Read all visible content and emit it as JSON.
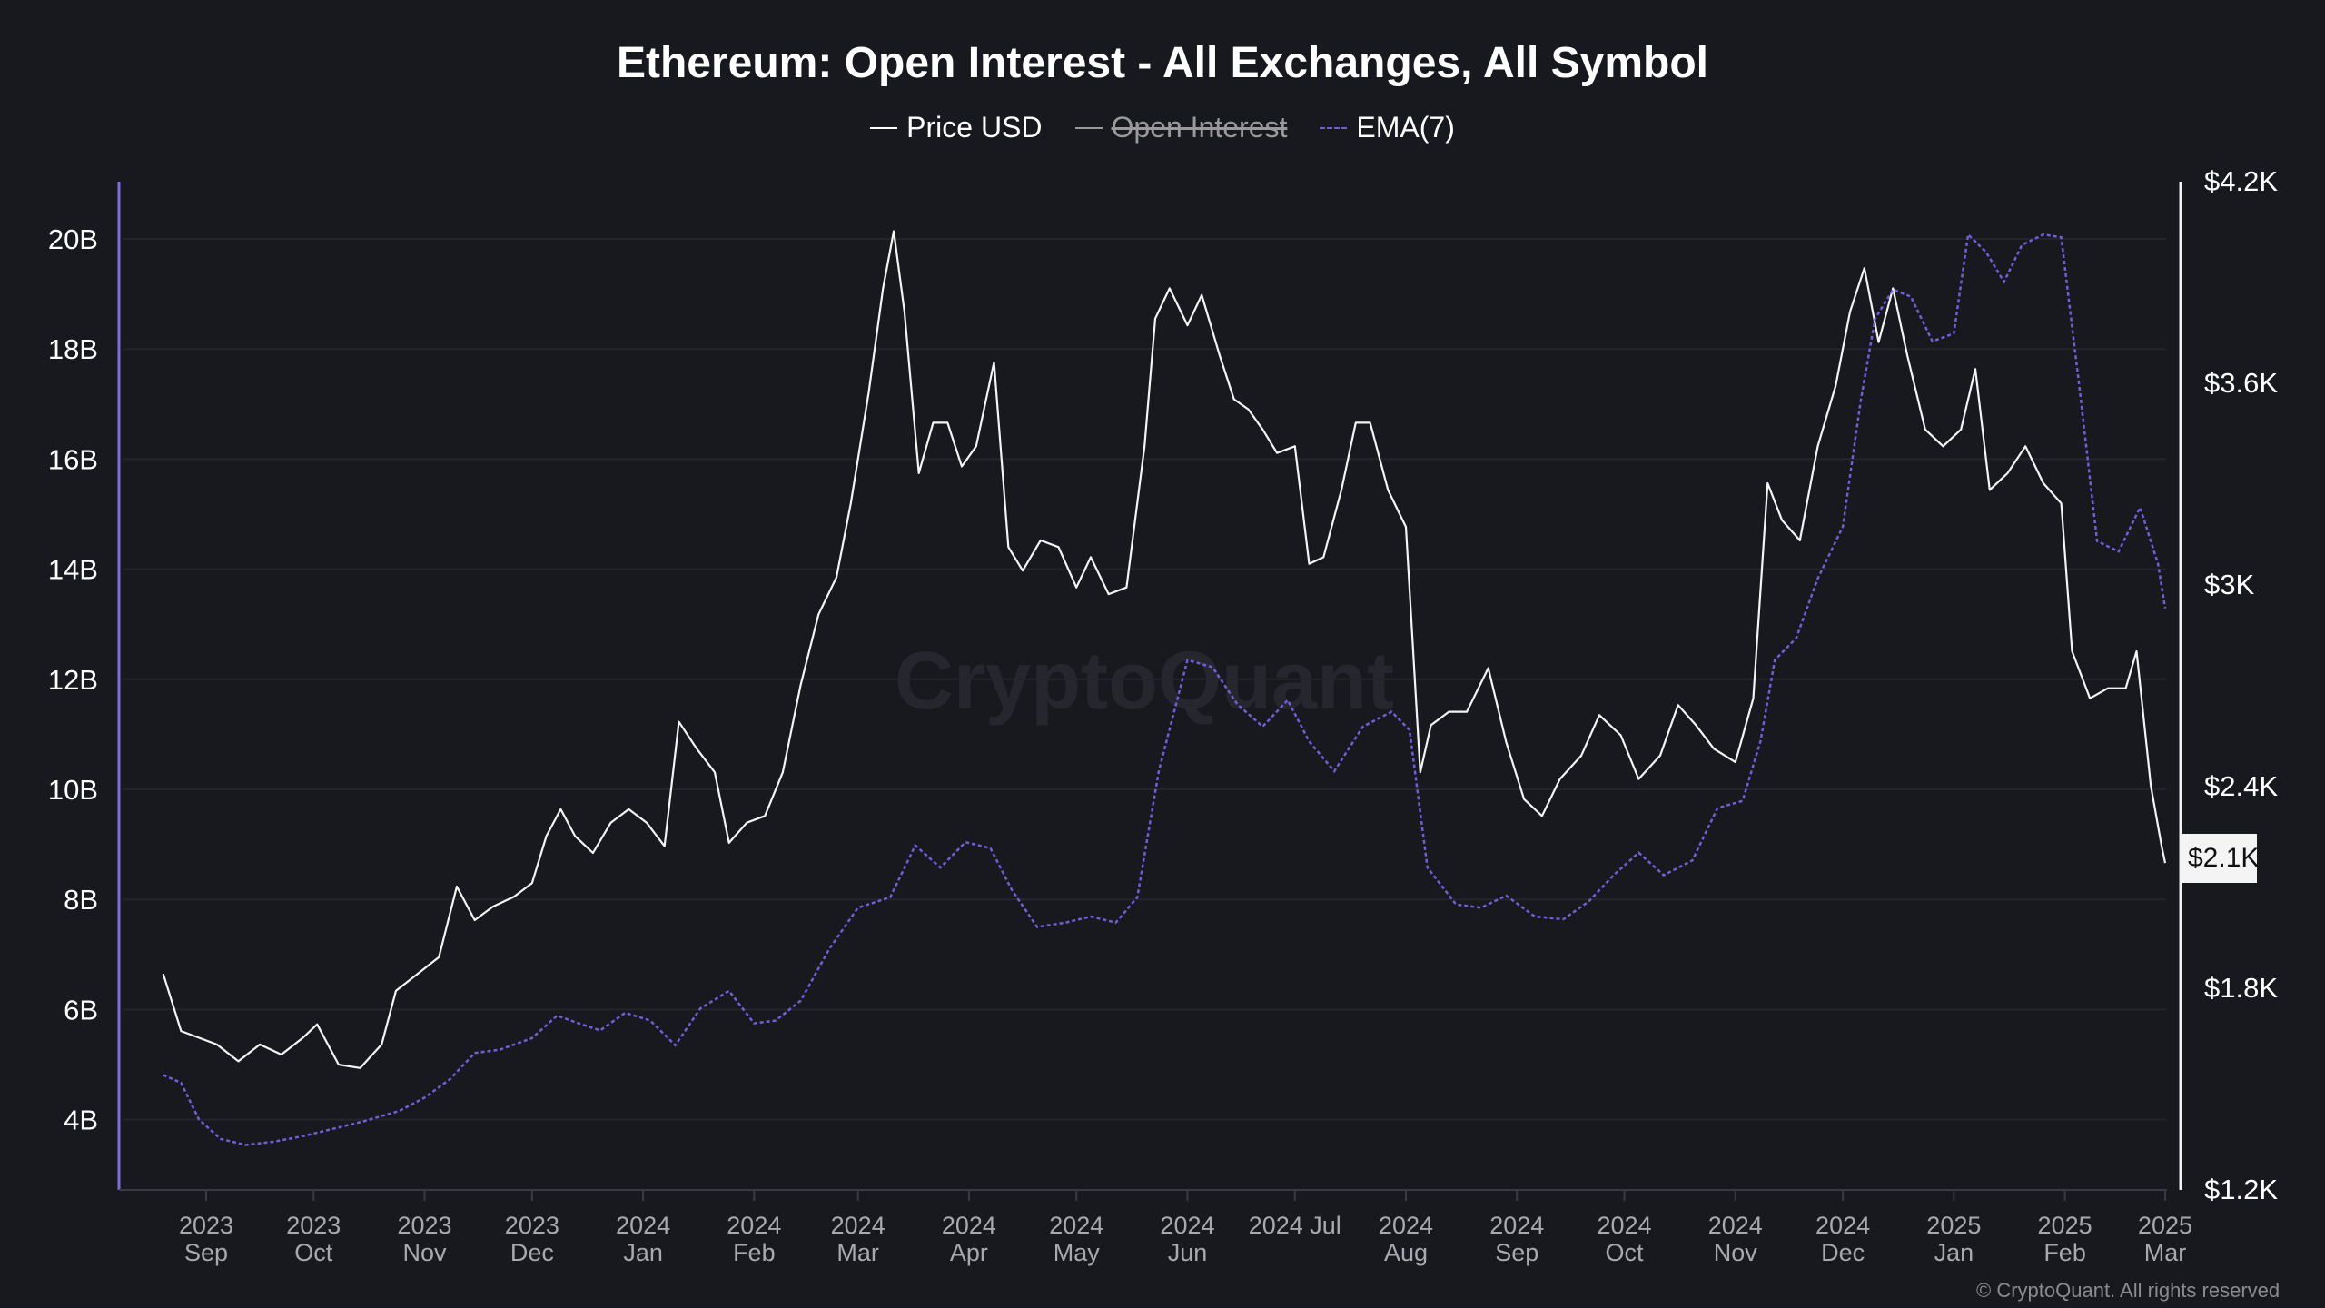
{
  "chart_data": {
    "type": "line",
    "title": "Ethereum: Open Interest - All Exchanges, All Symbol",
    "legend": [
      {
        "name": "Price USD",
        "color": "#ffffff",
        "style": "solid",
        "visible": true
      },
      {
        "name": "Open Interest",
        "color": "#999999",
        "style": "solid",
        "visible": false
      },
      {
        "name": "EMA(7)",
        "color": "#6f5fd8",
        "style": "dashed",
        "visible": true
      }
    ],
    "legend_placement": "top-center",
    "grid": true,
    "left_axis": {
      "ticks": [
        "4B",
        "6B",
        "8B",
        "10B",
        "12B",
        "14B",
        "16B",
        "18B",
        "20B"
      ],
      "tick_values": [
        4,
        6,
        8,
        10,
        12,
        14,
        16,
        18,
        20
      ],
      "unit": "B"
    },
    "right_axis": {
      "ticks": [
        "$1.2K",
        "$1.8K",
        "$2.4K",
        "$3K",
        "$3.6K",
        "$4.2K"
      ],
      "tick_values": [
        1.2,
        1.8,
        2.4,
        3.0,
        3.6,
        4.2
      ],
      "range": [
        1.2,
        4.2
      ],
      "unit": "K USD"
    },
    "x_ticks": [
      [
        "2023",
        "Sep"
      ],
      [
        "2023",
        "Oct"
      ],
      [
        "2023",
        "Nov"
      ],
      [
        "2023",
        "Dec"
      ],
      [
        "2024",
        "Jan"
      ],
      [
        "2024",
        "Feb"
      ],
      [
        "2024",
        "Mar"
      ],
      [
        "2024",
        "Apr"
      ],
      [
        "2024",
        "May"
      ],
      [
        "2024",
        "Jun"
      ],
      [
        "2024 Jul",
        ""
      ],
      [
        "2024",
        "Aug"
      ],
      [
        "2024",
        "Sep"
      ],
      [
        "2024",
        "Oct"
      ],
      [
        "2024",
        "Nov"
      ],
      [
        "2024",
        "Dec"
      ],
      [
        "2025",
        "Jan"
      ],
      [
        "2025",
        "Feb"
      ],
      [
        "2025",
        "Mar"
      ]
    ],
    "x_tick_dates": [
      "2023-09-01",
      "2023-10-01",
      "2023-11-01",
      "2023-12-01",
      "2024-01-01",
      "2024-02-01",
      "2024-03-01",
      "2024-04-01",
      "2024-05-01",
      "2024-06-01",
      "2024-07-01",
      "2024-08-01",
      "2024-09-01",
      "2024-10-01",
      "2024-11-01",
      "2024-12-01",
      "2025-01-01",
      "2025-02-01",
      "2025-03-01"
    ],
    "current_price_label": "$2.1K",
    "series": [
      {
        "name": "Price USD",
        "axis": "right",
        "points": [
          [
            "2023-08-20",
            1.84
          ],
          [
            "2023-08-25",
            1.67
          ],
          [
            "2023-08-30",
            1.65
          ],
          [
            "2023-09-04",
            1.63
          ],
          [
            "2023-09-10",
            1.58
          ],
          [
            "2023-09-16",
            1.63
          ],
          [
            "2023-09-22",
            1.6
          ],
          [
            "2023-09-28",
            1.65
          ],
          [
            "2023-10-02",
            1.69
          ],
          [
            "2023-10-08",
            1.57
          ],
          [
            "2023-10-14",
            1.56
          ],
          [
            "2023-10-20",
            1.63
          ],
          [
            "2023-10-24",
            1.79
          ],
          [
            "2023-10-30",
            1.84
          ],
          [
            "2023-11-05",
            1.89
          ],
          [
            "2023-11-10",
            2.1
          ],
          [
            "2023-11-15",
            2.0
          ],
          [
            "2023-11-20",
            2.04
          ],
          [
            "2023-11-26",
            2.07
          ],
          [
            "2023-12-01",
            2.11
          ],
          [
            "2023-12-05",
            2.25
          ],
          [
            "2023-12-09",
            2.33
          ],
          [
            "2023-12-13",
            2.25
          ],
          [
            "2023-12-18",
            2.2
          ],
          [
            "2023-12-23",
            2.29
          ],
          [
            "2023-12-28",
            2.33
          ],
          [
            "2024-01-02",
            2.29
          ],
          [
            "2024-01-07",
            2.22
          ],
          [
            "2024-01-11",
            2.59
          ],
          [
            "2024-01-16",
            2.51
          ],
          [
            "2024-01-21",
            2.44
          ],
          [
            "2024-01-25",
            2.23
          ],
          [
            "2024-01-30",
            2.29
          ],
          [
            "2024-02-04",
            2.31
          ],
          [
            "2024-02-09",
            2.44
          ],
          [
            "2024-02-14",
            2.7
          ],
          [
            "2024-02-19",
            2.91
          ],
          [
            "2024-02-24",
            3.02
          ],
          [
            "2024-02-28",
            3.24
          ],
          [
            "2024-03-04",
            3.57
          ],
          [
            "2024-03-08",
            3.88
          ],
          [
            "2024-03-11",
            4.05
          ],
          [
            "2024-03-14",
            3.81
          ],
          [
            "2024-03-18",
            3.33
          ],
          [
            "2024-03-22",
            3.48
          ],
          [
            "2024-03-26",
            3.48
          ],
          [
            "2024-03-30",
            3.35
          ],
          [
            "2024-04-03",
            3.41
          ],
          [
            "2024-04-08",
            3.66
          ],
          [
            "2024-04-12",
            3.11
          ],
          [
            "2024-04-16",
            3.04
          ],
          [
            "2024-04-21",
            3.13
          ],
          [
            "2024-04-26",
            3.11
          ],
          [
            "2024-05-01",
            2.99
          ],
          [
            "2024-05-05",
            3.08
          ],
          [
            "2024-05-10",
            2.97
          ],
          [
            "2024-05-15",
            2.99
          ],
          [
            "2024-05-20",
            3.41
          ],
          [
            "2024-05-23",
            3.79
          ],
          [
            "2024-05-27",
            3.88
          ],
          [
            "2024-06-01",
            3.77
          ],
          [
            "2024-06-05",
            3.86
          ],
          [
            "2024-06-10",
            3.68
          ],
          [
            "2024-06-14",
            3.55
          ],
          [
            "2024-06-18",
            3.52
          ],
          [
            "2024-06-22",
            3.46
          ],
          [
            "2024-06-26",
            3.39
          ],
          [
            "2024-07-01",
            3.41
          ],
          [
            "2024-07-05",
            3.06
          ],
          [
            "2024-07-09",
            3.08
          ],
          [
            "2024-07-14",
            3.28
          ],
          [
            "2024-07-18",
            3.48
          ],
          [
            "2024-07-22",
            3.48
          ],
          [
            "2024-07-27",
            3.28
          ],
          [
            "2024-08-01",
            3.17
          ],
          [
            "2024-08-05",
            2.44
          ],
          [
            "2024-08-08",
            2.58
          ],
          [
            "2024-08-13",
            2.62
          ],
          [
            "2024-08-18",
            2.62
          ],
          [
            "2024-08-24",
            2.75
          ],
          [
            "2024-08-29",
            2.53
          ],
          [
            "2024-09-03",
            2.36
          ],
          [
            "2024-09-08",
            2.31
          ],
          [
            "2024-09-13",
            2.42
          ],
          [
            "2024-09-19",
            2.49
          ],
          [
            "2024-09-24",
            2.61
          ],
          [
            "2024-09-30",
            2.55
          ],
          [
            "2024-10-05",
            2.42
          ],
          [
            "2024-10-11",
            2.49
          ],
          [
            "2024-10-16",
            2.64
          ],
          [
            "2024-10-21",
            2.58
          ],
          [
            "2024-10-26",
            2.51
          ],
          [
            "2024-11-01",
            2.47
          ],
          [
            "2024-11-06",
            2.66
          ],
          [
            "2024-11-10",
            3.3
          ],
          [
            "2024-11-14",
            3.19
          ],
          [
            "2024-11-19",
            3.13
          ],
          [
            "2024-11-24",
            3.41
          ],
          [
            "2024-11-29",
            3.59
          ],
          [
            "2024-12-03",
            3.81
          ],
          [
            "2024-12-07",
            3.94
          ],
          [
            "2024-12-11",
            3.72
          ],
          [
            "2024-12-15",
            3.88
          ],
          [
            "2024-12-19",
            3.68
          ],
          [
            "2024-12-24",
            3.46
          ],
          [
            "2024-12-29",
            3.41
          ],
          [
            "2025-01-03",
            3.46
          ],
          [
            "2025-01-07",
            3.64
          ],
          [
            "2025-01-11",
            3.28
          ],
          [
            "2025-01-16",
            3.33
          ],
          [
            "2025-01-21",
            3.41
          ],
          [
            "2025-01-26",
            3.3
          ],
          [
            "2025-01-31",
            3.24
          ],
          [
            "2025-02-03",
            2.8
          ],
          [
            "2025-02-08",
            2.66
          ],
          [
            "2025-02-13",
            2.69
          ],
          [
            "2025-02-18",
            2.69
          ],
          [
            "2025-02-21",
            2.8
          ],
          [
            "2025-02-25",
            2.4
          ],
          [
            "2025-02-28",
            2.22
          ],
          [
            "2025-03-01",
            2.17
          ]
        ]
      },
      {
        "name": "EMA(7)",
        "axis": "left",
        "points": [
          [
            "2023-08-20",
            4.81
          ],
          [
            "2023-08-25",
            4.67
          ],
          [
            "2023-08-30",
            4.0
          ],
          [
            "2023-09-05",
            3.65
          ],
          [
            "2023-09-12",
            3.54
          ],
          [
            "2023-09-20",
            3.6
          ],
          [
            "2023-09-28",
            3.7
          ],
          [
            "2023-10-05",
            3.81
          ],
          [
            "2023-10-15",
            3.97
          ],
          [
            "2023-10-25",
            4.16
          ],
          [
            "2023-11-01",
            4.4
          ],
          [
            "2023-11-08",
            4.73
          ],
          [
            "2023-11-15",
            5.21
          ],
          [
            "2023-11-22",
            5.27
          ],
          [
            "2023-12-01",
            5.48
          ],
          [
            "2023-12-08",
            5.89
          ],
          [
            "2023-12-14",
            5.75
          ],
          [
            "2023-12-20",
            5.62
          ],
          [
            "2023-12-27",
            5.94
          ],
          [
            "2024-01-03",
            5.8
          ],
          [
            "2024-01-10",
            5.35
          ],
          [
            "2024-01-17",
            6.02
          ],
          [
            "2024-01-25",
            6.34
          ],
          [
            "2024-02-01",
            5.75
          ],
          [
            "2024-02-07",
            5.8
          ],
          [
            "2024-02-14",
            6.16
          ],
          [
            "2024-02-22",
            7.1
          ],
          [
            "2024-03-01",
            7.85
          ],
          [
            "2024-03-10",
            8.04
          ],
          [
            "2024-03-17",
            8.98
          ],
          [
            "2024-03-24",
            8.58
          ],
          [
            "2024-03-31",
            9.04
          ],
          [
            "2024-04-07",
            8.93
          ],
          [
            "2024-04-13",
            8.17
          ],
          [
            "2024-04-20",
            7.5
          ],
          [
            "2024-04-28",
            7.58
          ],
          [
            "2024-05-05",
            7.69
          ],
          [
            "2024-05-12",
            7.58
          ],
          [
            "2024-05-18",
            8.04
          ],
          [
            "2024-05-24",
            10.33
          ],
          [
            "2024-06-01",
            12.35
          ],
          [
            "2024-06-08",
            12.22
          ],
          [
            "2024-06-15",
            11.54
          ],
          [
            "2024-06-22",
            11.14
          ],
          [
            "2024-06-29",
            11.62
          ],
          [
            "2024-07-05",
            10.87
          ],
          [
            "2024-07-12",
            10.33
          ],
          [
            "2024-07-20",
            11.14
          ],
          [
            "2024-07-28",
            11.41
          ],
          [
            "2024-08-02",
            11.08
          ],
          [
            "2024-08-07",
            8.58
          ],
          [
            "2024-08-15",
            7.91
          ],
          [
            "2024-08-22",
            7.85
          ],
          [
            "2024-08-29",
            8.07
          ],
          [
            "2024-09-06",
            7.69
          ],
          [
            "2024-09-14",
            7.64
          ],
          [
            "2024-09-21",
            7.96
          ],
          [
            "2024-09-28",
            8.44
          ],
          [
            "2024-10-05",
            8.85
          ],
          [
            "2024-10-12",
            8.44
          ],
          [
            "2024-10-20",
            8.71
          ],
          [
            "2024-10-27",
            9.66
          ],
          [
            "2024-11-03",
            9.79
          ],
          [
            "2024-11-08",
            10.87
          ],
          [
            "2024-11-12",
            12.35
          ],
          [
            "2024-11-18",
            12.75
          ],
          [
            "2024-11-24",
            13.83
          ],
          [
            "2024-12-01",
            14.77
          ],
          [
            "2024-12-06",
            17.06
          ],
          [
            "2024-12-10",
            18.55
          ],
          [
            "2024-12-15",
            19.08
          ],
          [
            "2024-12-20",
            18.95
          ],
          [
            "2024-12-26",
            18.14
          ],
          [
            "2025-01-01",
            18.28
          ],
          [
            "2025-01-05",
            20.08
          ],
          [
            "2025-01-10",
            19.76
          ],
          [
            "2025-01-15",
            19.22
          ],
          [
            "2025-01-20",
            19.89
          ],
          [
            "2025-01-26",
            20.08
          ],
          [
            "2025-01-31",
            20.03
          ],
          [
            "2025-02-05",
            17.33
          ],
          [
            "2025-02-10",
            14.51
          ],
          [
            "2025-02-16",
            14.32
          ],
          [
            "2025-02-22",
            15.12
          ],
          [
            "2025-02-27",
            14.1
          ],
          [
            "2025-03-01",
            13.29
          ]
        ]
      }
    ]
  },
  "watermark": "CryptoQuant",
  "copyright": "© CryptoQuant. All rights reserved"
}
